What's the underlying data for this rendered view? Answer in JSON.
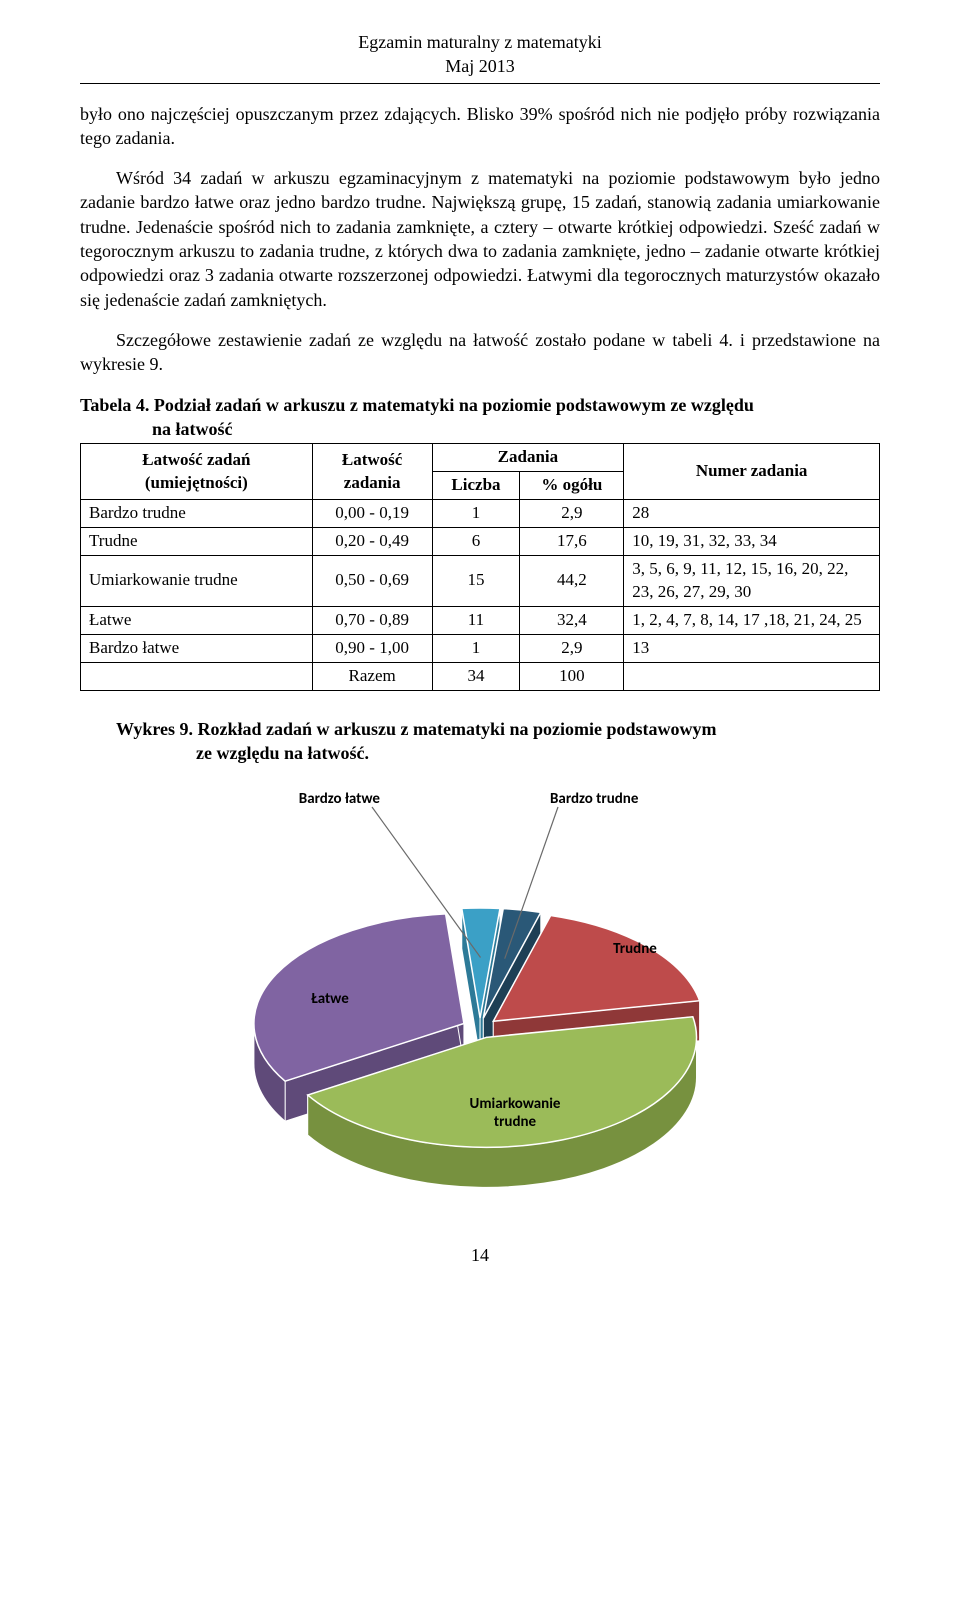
{
  "header": {
    "line1": "Egzamin maturalny z matematyki",
    "line2": "Maj 2013"
  },
  "paragraphs": {
    "p1": "było ono najczęściej opuszczanym przez zdających. Blisko 39% spośród nich nie podjęło próby rozwiązania tego zadania.",
    "p2": "Wśród 34 zadań w arkuszu egzaminacyjnym z matematyki na poziomie podstawowym było jedno zadanie bardzo łatwe oraz jedno bardzo trudne. Największą grupę, 15 zadań, stanowią zadania umiarkowanie trudne. Jedenaście spośród nich to zadania zamknięte, a cztery – otwarte krótkiej odpowiedzi. Sześć zadań w tegorocznym arkuszu to zadania trudne, z których dwa to zadania zamknięte, jedno – zadanie otwarte krótkiej odpowiedzi oraz 3 zadania otwarte rozszerzonej odpowiedzi. Łatwymi dla tegorocznych maturzystów okazało się jedenaście zadań zamkniętych.",
    "p3": "Szczegółowe zestawienie zadań ze względu na łatwość zostało podane w tabeli 4. i przedstawione na wykresie 9."
  },
  "table": {
    "title_a": "Tabela 4. ",
    "title_b": "Podział zadań w arkuszu z matematyki na poziomie podstawowym ze względu",
    "title_c": "na łatwość",
    "head": {
      "c1a": "Łatwość zadań",
      "c1b": "(umiejętności)",
      "c2a": "Łatwość",
      "c2b": "zadania",
      "c3_group": "Zadania",
      "c3": "Liczba",
      "c4": "% ogółu",
      "c5": "Numer zadania"
    },
    "rows": [
      {
        "cat": "Bardzo trudne",
        "range": "0,00 - 0,19",
        "n": "1",
        "pct": "2,9",
        "nums": "28"
      },
      {
        "cat": "Trudne",
        "range": "0,20 - 0,49",
        "n": "6",
        "pct": "17,6",
        "nums": "10, 19, 31, 32, 33, 34"
      },
      {
        "cat": "Umiarkowanie trudne",
        "range": "0,50 - 0,69",
        "n": "15",
        "pct": "44,2",
        "nums": "3, 5, 6, 9, 11, 12, 15, 16, 20, 22, 23, 26, 27, 29, 30"
      },
      {
        "cat": "Łatwe",
        "range": "0,70 - 0,89",
        "n": "11",
        "pct": "32,4",
        "nums": "1, 2, 4, 7, 8, 14, 17 ,18, 21, 24, 25"
      },
      {
        "cat": "Bardzo łatwe",
        "range": "0,90 - 1,00",
        "n": "1",
        "pct": "2,9",
        "nums": "13"
      }
    ],
    "sum_label": "Razem",
    "sum_n": "34",
    "sum_pct": "100"
  },
  "chart": {
    "title_a": "Wykres 9. ",
    "title_b": "Rozkład zadań w arkuszu z matematyki na poziomie podstawowym",
    "title_c": "ze względu na łatwość.",
    "type": "pie-3d-exploded",
    "background": "#ffffff",
    "label_font": "bold 15px Calibri, Arial, sans-serif",
    "label_color": "#000000",
    "leader_color": "#6a6a6a",
    "slices": [
      {
        "key": "bardzo_latwe",
        "label": "Bardzo łatwe",
        "value": 2.9,
        "color_top": "#3ba0c6",
        "color_side": "#2d7a98"
      },
      {
        "key": "bardzo_trudne",
        "label": "Bardzo trudne",
        "value": 2.9,
        "color_top": "#2a5877",
        "color_side": "#1e3f55"
      },
      {
        "key": "trudne",
        "label": "Trudne",
        "value": 17.6,
        "color_top": "#be4b4b",
        "color_side": "#8f3838"
      },
      {
        "key": "umiarkowanie",
        "label": "Umiarkowanie trudne",
        "value": 44.2,
        "color_top": "#9bbb59",
        "color_side": "#77913f"
      },
      {
        "key": "latwe",
        "label": "Łatwe",
        "value": 32.4,
        "color_top": "#8064a2",
        "color_side": "#5f4a79"
      }
    ]
  },
  "page_number": "14"
}
